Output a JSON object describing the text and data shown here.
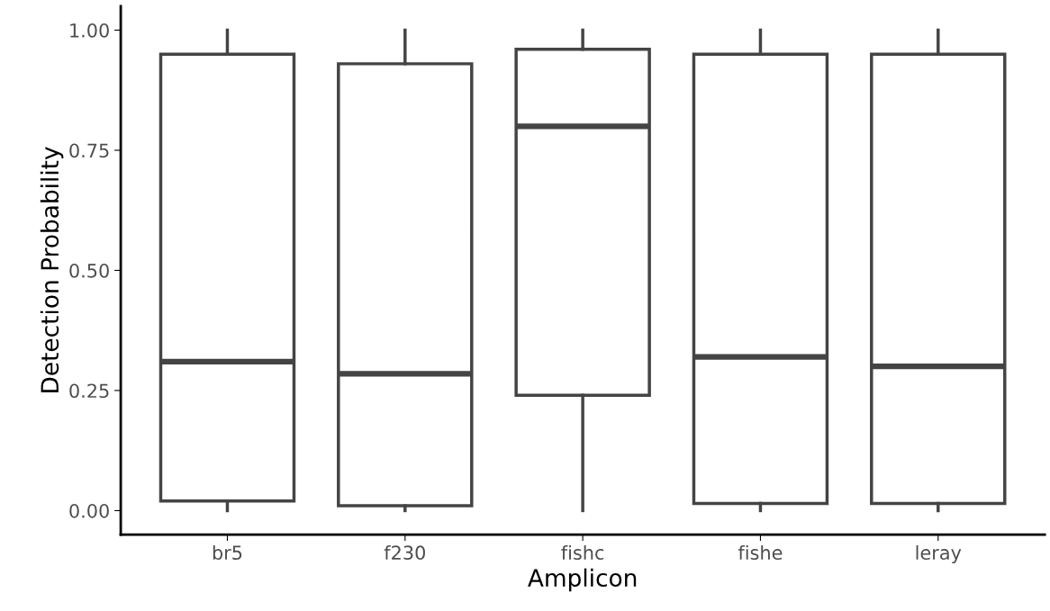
{
  "chart_data": {
    "type": "box",
    "xlabel": "Amplicon",
    "ylabel": "Detection Probability",
    "categories": [
      "br5",
      "f230",
      "fishc",
      "fishe",
      "leray"
    ],
    "boxes": [
      {
        "low": 0.0,
        "q1": 0.02,
        "median": 0.31,
        "q3": 0.95,
        "high": 1.0
      },
      {
        "low": 0.0,
        "q1": 0.01,
        "median": 0.285,
        "q3": 0.93,
        "high": 1.0
      },
      {
        "low": 0.0,
        "q1": 0.24,
        "median": 0.8,
        "q3": 0.96,
        "high": 1.0
      },
      {
        "low": 0.0,
        "q1": 0.015,
        "median": 0.32,
        "q3": 0.95,
        "high": 1.0
      },
      {
        "low": 0.0,
        "q1": 0.015,
        "median": 0.3,
        "q3": 0.95,
        "high": 1.0
      }
    ],
    "color": "#444444",
    "ylim": [
      -0.05,
      1.05
    ],
    "yticks": [
      {
        "value": 0,
        "label": "0.00"
      },
      {
        "value": 0.25,
        "label": "0.25"
      },
      {
        "value": 0.5,
        "label": "0.50"
      },
      {
        "value": 0.75,
        "label": "0.75"
      },
      {
        "value": 1,
        "label": "1.00"
      }
    ],
    "grid": false
  }
}
